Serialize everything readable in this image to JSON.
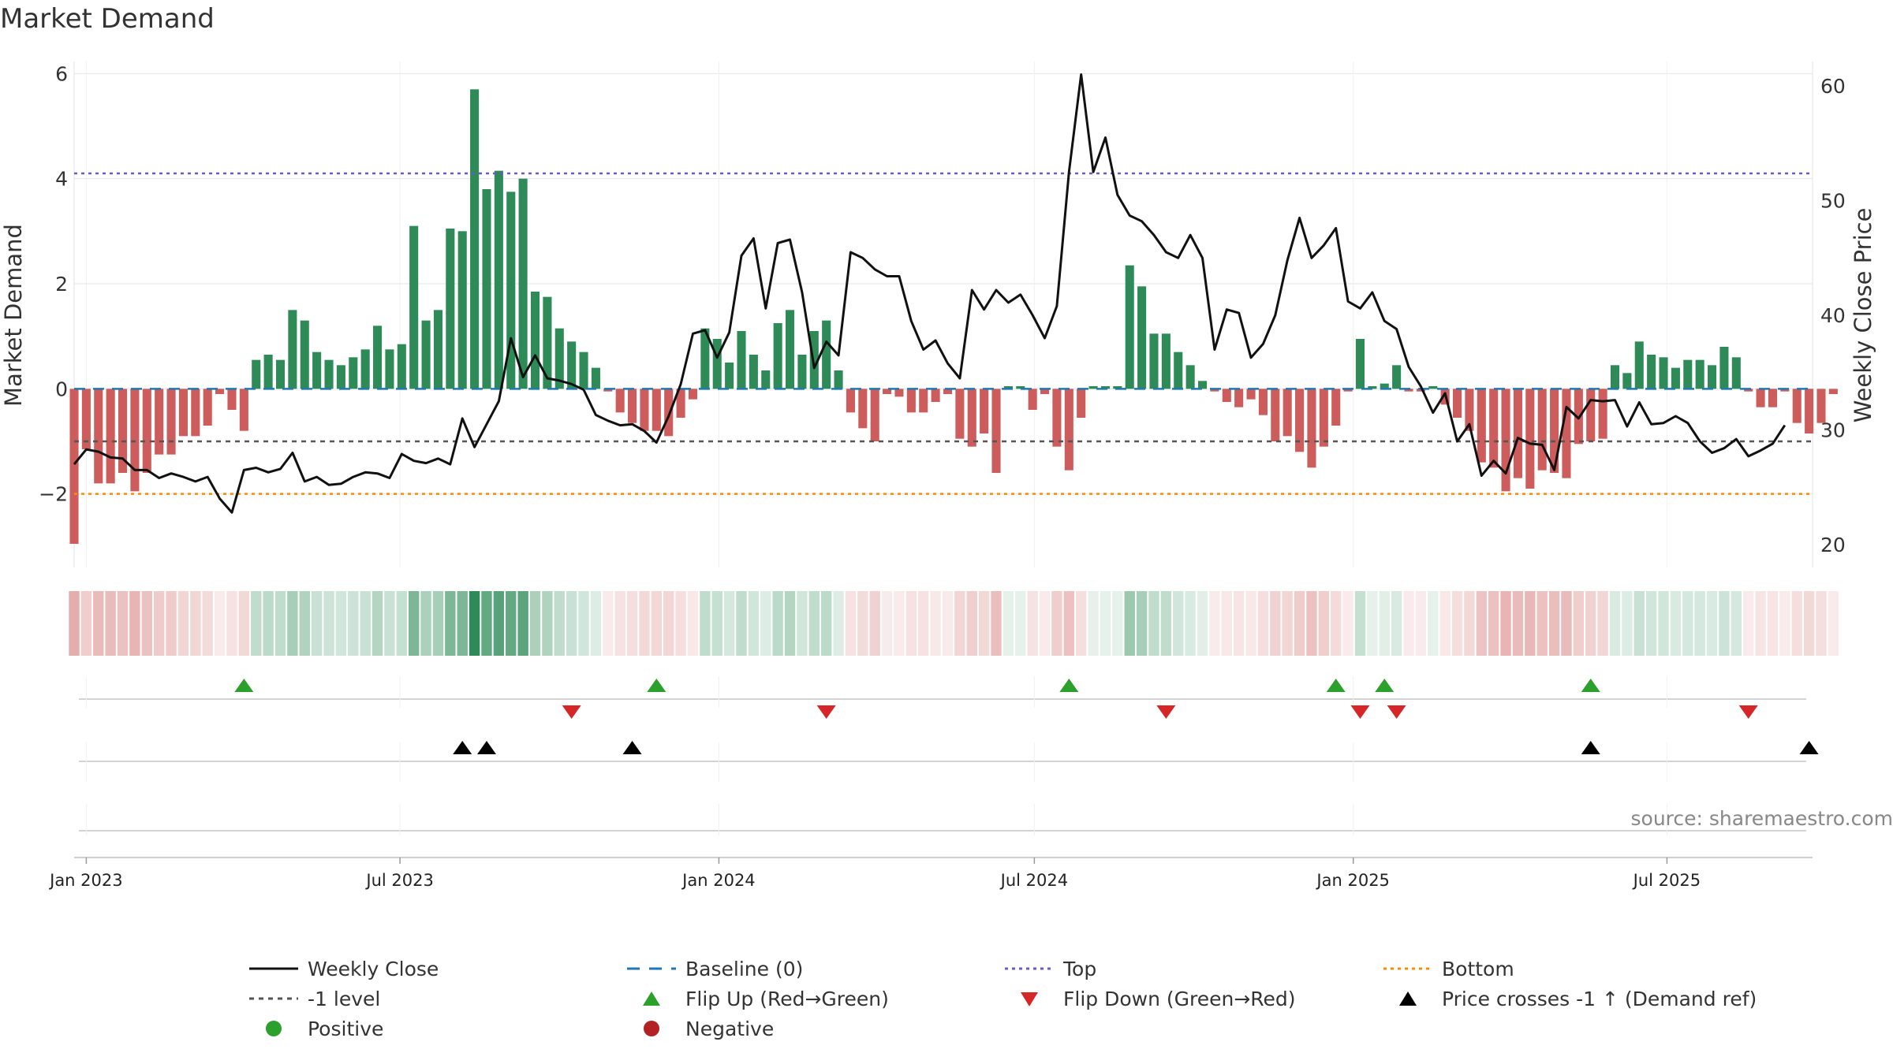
{
  "title": "Market Demand",
  "source": "source: sharemaestro.com",
  "colors": {
    "positive": "#2e8b57",
    "negative": "#cd5c5c",
    "price": "#111111",
    "baseline": "#1f77b4",
    "top": "#6a5acd",
    "bottom": "#ff8c00",
    "minus_one": "#555555",
    "flip_up": "#2ca02c",
    "flip_down": "#d62728",
    "cross": "#000000"
  },
  "chart_data": {
    "type": "bar",
    "title": "Market Demand",
    "ylabel": "Market Demand",
    "y2label": "Weekly Close Price",
    "ylim": [
      -3.4,
      6.2
    ],
    "y2lim": [
      18,
      62
    ],
    "yticks": [
      6,
      4,
      2,
      0,
      -2
    ],
    "ytick_labels": [
      "6",
      "4",
      "2",
      "0",
      "−2"
    ],
    "y2ticks": [
      60,
      50,
      40,
      30,
      20
    ],
    "y2tick_labels": [
      "60",
      "50",
      "40",
      "30",
      "20"
    ],
    "x_start": "2022-12-25",
    "x_end": "2025-09-23",
    "xticks": [
      {
        "date": "2023-01-01",
        "label": "Jan 2023"
      },
      {
        "date": "2023-07-01",
        "label": "Jul 2023"
      },
      {
        "date": "2024-01-01",
        "label": "Jan 2024"
      },
      {
        "date": "2024-07-01",
        "label": "Jul 2024"
      },
      {
        "date": "2025-01-01",
        "label": "Jan 2025"
      },
      {
        "date": "2025-07-01",
        "label": "Jul 2025"
      }
    ],
    "levels": {
      "top": 4.1,
      "bottom": -2.0,
      "minus_one": -1.0,
      "baseline": 0
    },
    "demand_start": "2022-12-25",
    "demand": [
      -2.95,
      -1.15,
      -1.8,
      -1.8,
      -1.6,
      -1.95,
      -1.6,
      -1.25,
      -1.25,
      -0.9,
      -0.9,
      -0.7,
      -0.1,
      -0.4,
      -0.8,
      0.55,
      0.65,
      0.55,
      1.5,
      1.3,
      0.7,
      0.55,
      0.45,
      0.6,
      0.75,
      1.2,
      0.75,
      0.85,
      3.1,
      1.3,
      1.5,
      3.05,
      3.0,
      5.7,
      3.8,
      4.15,
      3.75,
      4.0,
      1.85,
      1.75,
      1.15,
      0.9,
      0.7,
      0.4,
      -0.05,
      -0.45,
      -0.65,
      -0.8,
      -0.8,
      -0.9,
      -0.55,
      -0.2,
      1.15,
      0.95,
      0.5,
      1.1,
      0.65,
      0.35,
      1.25,
      1.5,
      0.65,
      1.1,
      1.3,
      0.35,
      -0.45,
      -0.75,
      -1.0,
      -0.1,
      -0.15,
      -0.45,
      -0.45,
      -0.25,
      -0.1,
      -0.95,
      -1.1,
      -0.85,
      -1.6,
      0.05,
      0.05,
      -0.4,
      -0.1,
      -1.1,
      -1.55,
      -0.55,
      0.05,
      0.05,
      0.05,
      2.35,
      1.95,
      1.05,
      1.05,
      0.7,
      0.45,
      0.15,
      -0.05,
      -0.25,
      -0.35,
      -0.2,
      -0.5,
      -1.0,
      -0.9,
      -1.2,
      -1.5,
      -1.1,
      -0.7,
      -0.05,
      0.95,
      0.05,
      0.1,
      0.45,
      -0.05,
      -0.05,
      0.05,
      -0.3,
      -0.55,
      -0.8,
      -1.4,
      -1.5,
      -1.95,
      -1.7,
      -1.9,
      -1.55,
      -1.6,
      -1.7,
      -1.05,
      -1.0,
      -0.95,
      0.45,
      0.3,
      0.9,
      0.65,
      0.6,
      0.4,
      0.55,
      0.55,
      0.45,
      0.8,
      0.6,
      -0.05,
      -0.35,
      -0.35,
      -0.05,
      -0.65,
      -0.85,
      -0.65,
      -0.1
    ],
    "price": [
      27,
      28.3,
      28.1,
      27.6,
      27.5,
      26.5,
      26.5,
      25.8,
      26.2,
      25.9,
      25.5,
      25.9,
      24,
      22.8,
      26.5,
      26.7,
      26.3,
      26.6,
      28,
      25.5,
      25.9,
      25.2,
      25.3,
      25.9,
      26.3,
      26.2,
      25.8,
      27.9,
      27.3,
      27.1,
      27.5,
      27,
      31,
      28.5,
      30.5,
      32.5,
      38,
      34.6,
      36.5,
      34.5,
      34.3,
      34,
      33.5,
      31.3,
      30.8,
      30.4,
      30.5,
      29.9,
      28.9,
      31.2,
      34,
      38.4,
      38.7,
      36.3,
      38.5,
      45.2,
      46.7,
      40.6,
      46.3,
      46.6,
      42,
      35.4,
      37.7,
      36.5,
      45.5,
      45,
      44,
      43.4,
      43.4,
      39.5,
      37,
      37.8,
      35.8,
      34.5,
      42.2,
      40.5,
      42.2,
      41.1,
      41.8,
      40,
      38,
      40.8,
      52.5,
      61,
      52.5,
      55.5,
      50.5,
      48.7,
      48.2,
      47,
      45.5,
      45,
      47,
      45,
      37,
      40.5,
      40.2,
      36.3,
      37.5,
      40,
      44.8,
      48.5,
      45,
      46.1,
      47.6,
      41.2,
      40.6,
      42,
      39.5,
      38.8,
      35.5,
      33.8,
      31.5,
      33.2,
      29,
      30.5,
      26,
      27.3,
      26.2,
      29.3,
      28.8,
      28.7,
      26.5,
      32,
      31,
      32.6,
      32.5,
      32.6,
      30.3,
      32.4,
      30.5,
      30.6,
      31.2,
      30.6,
      29,
      28,
      28.4,
      29.2,
      27.7,
      28.2,
      28.8,
      30.4
    ],
    "flip_up": [
      "2023-04-02",
      "2023-11-26",
      "2024-07-21",
      "2024-12-22",
      "2025-01-19",
      "2025-05-18"
    ],
    "flip_down": [
      "2023-10-08",
      "2024-03-03",
      "2024-09-15",
      "2025-01-05",
      "2025-01-26",
      "2025-08-17"
    ],
    "price_cross": [
      "2023-08-06",
      "2023-08-20",
      "2023-11-12",
      "2025-05-18",
      "2025-09-21"
    ],
    "strip_opacity": [
      0.5,
      0.3,
      0.42,
      0.42,
      0.38,
      0.46,
      0.38,
      0.32,
      0.32,
      0.26,
      0.26,
      0.22,
      0.12,
      0.18,
      0.24,
      0.3,
      0.32,
      0.3,
      0.42,
      0.38,
      0.26,
      0.24,
      0.22,
      0.24,
      0.26,
      0.36,
      0.26,
      0.28,
      0.62,
      0.4,
      0.42,
      0.62,
      0.62,
      1.0,
      0.74,
      0.8,
      0.74,
      0.78,
      0.4,
      0.38,
      0.3,
      0.26,
      0.22,
      0.16,
      0.12,
      0.18,
      0.2,
      0.24,
      0.24,
      0.26,
      0.2,
      0.14,
      0.3,
      0.28,
      0.2,
      0.3,
      0.22,
      0.16,
      0.32,
      0.36,
      0.22,
      0.3,
      0.32,
      0.16,
      0.18,
      0.22,
      0.28,
      0.12,
      0.12,
      0.18,
      0.18,
      0.14,
      0.12,
      0.26,
      0.3,
      0.24,
      0.4,
      0.12,
      0.12,
      0.18,
      0.12,
      0.3,
      0.38,
      0.2,
      0.12,
      0.12,
      0.12,
      0.48,
      0.42,
      0.3,
      0.3,
      0.22,
      0.18,
      0.14,
      0.12,
      0.14,
      0.16,
      0.14,
      0.2,
      0.28,
      0.26,
      0.32,
      0.38,
      0.3,
      0.22,
      0.12,
      0.28,
      0.12,
      0.14,
      0.18,
      0.12,
      0.12,
      0.12,
      0.14,
      0.2,
      0.24,
      0.36,
      0.38,
      0.46,
      0.42,
      0.44,
      0.38,
      0.4,
      0.42,
      0.3,
      0.28,
      0.26,
      0.18,
      0.16,
      0.26,
      0.22,
      0.22,
      0.18,
      0.2,
      0.2,
      0.18,
      0.24,
      0.2,
      0.12,
      0.16,
      0.16,
      0.12,
      0.2,
      0.24,
      0.2,
      0.12
    ]
  },
  "legend": [
    {
      "key": "line_black",
      "label": "Weekly Close"
    },
    {
      "key": "dash_blue",
      "label": "Baseline (0)"
    },
    {
      "key": "dot_purple",
      "label": "Top"
    },
    {
      "key": "dot_orange",
      "label": "Bottom"
    },
    {
      "key": "dash_gray",
      "label": "-1 level"
    },
    {
      "key": "tri_up_green",
      "label": "Flip Up (Red→Green)"
    },
    {
      "key": "tri_down_red",
      "label": "Flip Down (Green→Red)"
    },
    {
      "key": "tri_up_black",
      "label": "Price crosses -1 ↑ (Demand ref)"
    },
    {
      "key": "dot_green",
      "label": "Positive"
    },
    {
      "key": "dot_red",
      "label": "Negative"
    }
  ]
}
